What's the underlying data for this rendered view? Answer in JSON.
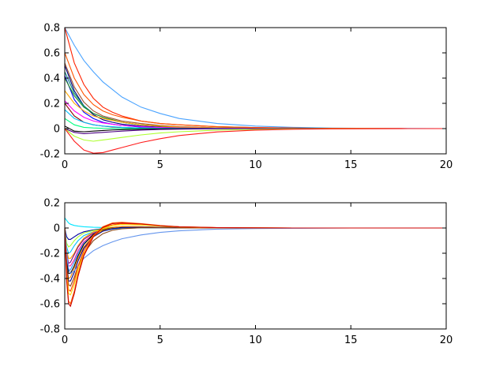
{
  "chart_data": [
    {
      "type": "line",
      "title": "",
      "xlabel": "",
      "ylabel": "",
      "xlim": [
        0,
        20
      ],
      "ylim": [
        -0.2,
        0.8
      ],
      "xticks": [
        0,
        5,
        10,
        15,
        20
      ],
      "xtick_labels": [
        "0",
        "5",
        "10",
        "15",
        "20"
      ],
      "yticks": [
        -0.2,
        0,
        0.2,
        0.4,
        0.6,
        0.8
      ],
      "ytick_labels": [
        "-0.2",
        "0",
        "0.2",
        "0.4",
        "0.6",
        "0.8"
      ],
      "grid": false,
      "x": [
        0,
        0.5,
        1,
        1.5,
        2,
        2.5,
        3,
        4,
        5,
        6,
        8,
        10,
        12,
        14,
        16,
        18,
        20
      ],
      "series": [
        {
          "color": "#4aa3ff",
          "values": [
            0.8,
            0.66,
            0.54,
            0.45,
            0.37,
            0.31,
            0.25,
            0.17,
            0.12,
            0.08,
            0.04,
            0.02,
            0.01,
            0.004,
            0.002,
            0.001,
            0
          ]
        },
        {
          "color": "#ff2200",
          "values": [
            0.8,
            0.52,
            0.35,
            0.24,
            0.17,
            0.13,
            0.1,
            0.06,
            0.04,
            0.03,
            0.015,
            0.008,
            0.004,
            0.002,
            0.001,
            0,
            0
          ]
        },
        {
          "color": "#ff5500",
          "values": [
            0.6,
            0.4,
            0.27,
            0.19,
            0.14,
            0.11,
            0.09,
            0.06,
            0.04,
            0.03,
            0.015,
            0.008,
            0.004,
            0.002,
            0.001,
            0,
            0
          ]
        },
        {
          "color": "#000080",
          "values": [
            0.5,
            0.3,
            0.18,
            0.11,
            0.07,
            0.05,
            0.035,
            0.02,
            0.012,
            0.007,
            0.003,
            0.001,
            0,
            0,
            0,
            0,
            0
          ]
        },
        {
          "color": "#a0522d",
          "values": [
            0.52,
            0.33,
            0.21,
            0.14,
            0.1,
            0.08,
            0.06,
            0.04,
            0.025,
            0.015,
            0.007,
            0.003,
            0.001,
            0,
            0,
            0,
            0
          ]
        },
        {
          "color": "#008080",
          "values": [
            0.45,
            0.28,
            0.18,
            0.12,
            0.09,
            0.07,
            0.05,
            0.03,
            0.02,
            0.012,
            0.005,
            0.002,
            0.001,
            0,
            0,
            0,
            0
          ]
        },
        {
          "color": "#0000ff",
          "values": [
            0.42,
            0.23,
            0.13,
            0.08,
            0.05,
            0.035,
            0.025,
            0.012,
            0.006,
            0.003,
            0.001,
            0,
            0,
            0,
            0,
            0,
            0
          ]
        },
        {
          "color": "#228b22",
          "values": [
            0.4,
            0.26,
            0.17,
            0.12,
            0.09,
            0.07,
            0.05,
            0.03,
            0.018,
            0.01,
            0.004,
            0.002,
            0.001,
            0,
            0,
            0,
            0
          ]
        },
        {
          "color": "#ffa500",
          "values": [
            0.3,
            0.2,
            0.14,
            0.1,
            0.08,
            0.065,
            0.05,
            0.03,
            0.02,
            0.012,
            0.005,
            0.002,
            0.001,
            0,
            0,
            0,
            0
          ]
        },
        {
          "color": "#ff00ff",
          "values": [
            0.22,
            0.14,
            0.09,
            0.06,
            0.045,
            0.035,
            0.025,
            0.015,
            0.009,
            0.005,
            0.002,
            0.001,
            0,
            0,
            0,
            0,
            0
          ]
        },
        {
          "color": "#8b0000",
          "values": [
            0.2,
            0.1,
            0.05,
            0.03,
            0.02,
            0.013,
            0.009,
            0.004,
            0.002,
            0.001,
            0,
            0,
            0,
            0,
            0,
            0,
            0
          ]
        },
        {
          "color": "#00bfff",
          "values": [
            0.15,
            0.08,
            0.05,
            0.03,
            0.02,
            0.015,
            0.01,
            0.005,
            0.003,
            0.002,
            0.001,
            0,
            0,
            0,
            0,
            0,
            0
          ]
        },
        {
          "color": "#00ff7f",
          "values": [
            0.08,
            0.03,
            0.01,
            0.005,
            0.002,
            0.001,
            0,
            0,
            0,
            0,
            0,
            0,
            0,
            0,
            0,
            0,
            0
          ]
        },
        {
          "color": "#000000",
          "values": [
            0.02,
            -0.02,
            -0.025,
            -0.02,
            -0.015,
            -0.011,
            -0.008,
            -0.004,
            -0.002,
            -0.001,
            0,
            0,
            0,
            0,
            0,
            0,
            0
          ]
        },
        {
          "color": "#4b0082",
          "values": [
            0.0,
            -0.03,
            -0.04,
            -0.035,
            -0.03,
            -0.025,
            -0.02,
            -0.012,
            -0.007,
            -0.004,
            -0.001,
            0,
            0,
            0,
            0,
            0,
            0
          ]
        },
        {
          "color": "#adff2f",
          "values": [
            0.0,
            -0.06,
            -0.09,
            -0.1,
            -0.09,
            -0.08,
            -0.07,
            -0.05,
            -0.035,
            -0.025,
            -0.012,
            -0.006,
            -0.003,
            -0.001,
            0,
            0,
            0
          ]
        },
        {
          "color": "#ff1a1a",
          "values": [
            0.0,
            -0.1,
            -0.17,
            -0.195,
            -0.19,
            -0.17,
            -0.15,
            -0.11,
            -0.08,
            -0.055,
            -0.026,
            -0.012,
            -0.005,
            -0.002,
            -0.001,
            0,
            0
          ]
        }
      ]
    },
    {
      "type": "line",
      "title": "",
      "xlabel": "",
      "ylabel": "",
      "xlim": [
        0,
        20
      ],
      "ylim": [
        -0.8,
        0.2
      ],
      "xticks": [
        0,
        5,
        10,
        15,
        20
      ],
      "xtick_labels": [
        "0",
        "5",
        "10",
        "15",
        "20"
      ],
      "yticks": [
        -0.8,
        -0.6,
        -0.4,
        -0.2,
        0,
        0.2
      ],
      "ytick_labels": [
        "-0.8",
        "-0.6",
        "-0.4",
        "-0.2",
        "0",
        "0.2"
      ],
      "grid": false,
      "x": [
        0,
        0.1,
        0.2,
        0.3,
        0.5,
        0.7,
        1,
        1.5,
        2,
        2.5,
        3,
        4,
        5,
        6,
        8,
        10,
        12,
        15,
        20
      ],
      "series": [
        {
          "color": "#00e5ff",
          "values": [
            0.08,
            0.06,
            0.04,
            0.03,
            0.02,
            0.015,
            0.01,
            0.006,
            0.004,
            0.003,
            0.002,
            0.001,
            0,
            0,
            0,
            0,
            0,
            0,
            0
          ]
        },
        {
          "color": "#0000a0",
          "values": [
            0.0,
            -0.07,
            -0.09,
            -0.09,
            -0.07,
            -0.05,
            -0.03,
            -0.015,
            -0.005,
            0,
            0.002,
            0.002,
            0.001,
            0,
            0,
            0,
            0,
            0,
            0
          ]
        },
        {
          "color": "#adff2f",
          "values": [
            0.0,
            -0.12,
            -0.15,
            -0.14,
            -0.1,
            -0.07,
            -0.04,
            -0.02,
            -0.008,
            -0.003,
            0,
            0.002,
            0.001,
            0,
            0,
            0,
            0,
            0,
            0
          ]
        },
        {
          "color": "#00bfff",
          "values": [
            0.0,
            -0.15,
            -0.2,
            -0.19,
            -0.14,
            -0.1,
            -0.06,
            -0.03,
            -0.015,
            -0.007,
            -0.003,
            0.001,
            0.001,
            0,
            0,
            0,
            0,
            0,
            0
          ]
        },
        {
          "color": "#ffa500",
          "values": [
            0.0,
            -0.18,
            -0.24,
            -0.24,
            -0.2,
            -0.14,
            -0.08,
            -0.03,
            -0.008,
            0.006,
            0.012,
            0.01,
            0.006,
            0.003,
            0.001,
            0,
            0,
            0,
            0
          ]
        },
        {
          "color": "#800080",
          "values": [
            0.0,
            -0.2,
            -0.28,
            -0.27,
            -0.21,
            -0.15,
            -0.09,
            -0.04,
            -0.015,
            -0.004,
            0.003,
            0.006,
            0.004,
            0.002,
            0,
            0,
            0,
            0,
            0
          ]
        },
        {
          "color": "#ff1493",
          "values": [
            0.0,
            -0.22,
            -0.3,
            -0.3,
            -0.25,
            -0.18,
            -0.11,
            -0.05,
            -0.02,
            -0.006,
            0.002,
            0.004,
            0.003,
            0.001,
            0,
            0,
            0,
            0,
            0
          ]
        },
        {
          "color": "#1e90ff",
          "values": [
            0.0,
            -0.25,
            -0.34,
            -0.33,
            -0.27,
            -0.2,
            -0.12,
            -0.06,
            -0.025,
            -0.008,
            0,
            0.003,
            0.002,
            0.001,
            0,
            0,
            0,
            0,
            0
          ]
        },
        {
          "color": "#000000",
          "values": [
            0.0,
            -0.27,
            -0.36,
            -0.36,
            -0.3,
            -0.22,
            -0.13,
            -0.05,
            -0.015,
            0.002,
            0.008,
            0.008,
            0.005,
            0.002,
            0,
            0,
            0,
            0,
            0
          ]
        },
        {
          "color": "#ff8c00",
          "values": [
            0.0,
            -0.3,
            -0.4,
            -0.39,
            -0.32,
            -0.24,
            -0.15,
            -0.06,
            -0.02,
            0.0,
            0.01,
            0.01,
            0.006,
            0.003,
            0.001,
            0,
            0,
            0,
            0
          ]
        },
        {
          "color": "#00008b",
          "values": [
            0.0,
            -0.3,
            -0.42,
            -0.42,
            -0.35,
            -0.26,
            -0.16,
            -0.07,
            -0.025,
            -0.005,
            0.004,
            0.006,
            0.004,
            0.002,
            0,
            0,
            0,
            0,
            0
          ]
        },
        {
          "color": "#6495ed",
          "values": [
            0.0,
            -0.2,
            -0.32,
            -0.36,
            -0.34,
            -0.3,
            -0.24,
            -0.18,
            -0.14,
            -0.11,
            -0.085,
            -0.055,
            -0.035,
            -0.022,
            -0.009,
            -0.004,
            -0.002,
            0,
            0
          ]
        },
        {
          "color": "#8b4513",
          "values": [
            0.0,
            -0.32,
            -0.45,
            -0.46,
            -0.39,
            -0.3,
            -0.2,
            -0.1,
            -0.045,
            -0.018,
            -0.006,
            0.002,
            0.002,
            0.001,
            0,
            0,
            0,
            0,
            0
          ]
        },
        {
          "color": "#ff4500",
          "values": [
            0.0,
            -0.34,
            -0.49,
            -0.5,
            -0.42,
            -0.3,
            -0.18,
            -0.06,
            0.0,
            0.025,
            0.035,
            0.03,
            0.018,
            0.01,
            0.003,
            0.001,
            0,
            0,
            0
          ]
        },
        {
          "color": "#ffd700",
          "values": [
            0.0,
            -0.36,
            -0.52,
            -0.53,
            -0.45,
            -0.33,
            -0.2,
            -0.07,
            -0.005,
            0.02,
            0.028,
            0.024,
            0.015,
            0.008,
            0.002,
            0.001,
            0,
            0,
            0
          ]
        },
        {
          "color": "#ff6600",
          "values": [
            0.0,
            -0.4,
            -0.58,
            -0.6,
            -0.5,
            -0.36,
            -0.21,
            -0.06,
            0.01,
            0.04,
            0.045,
            0.035,
            0.02,
            0.01,
            0.003,
            0.001,
            0,
            0,
            0
          ]
        },
        {
          "color": "#cc0000",
          "values": [
            0.0,
            -0.42,
            -0.6,
            -0.62,
            -0.52,
            -0.38,
            -0.22,
            -0.07,
            0.005,
            0.035,
            0.04,
            0.032,
            0.018,
            0.009,
            0.003,
            0.001,
            0,
            0,
            0
          ]
        }
      ]
    }
  ]
}
